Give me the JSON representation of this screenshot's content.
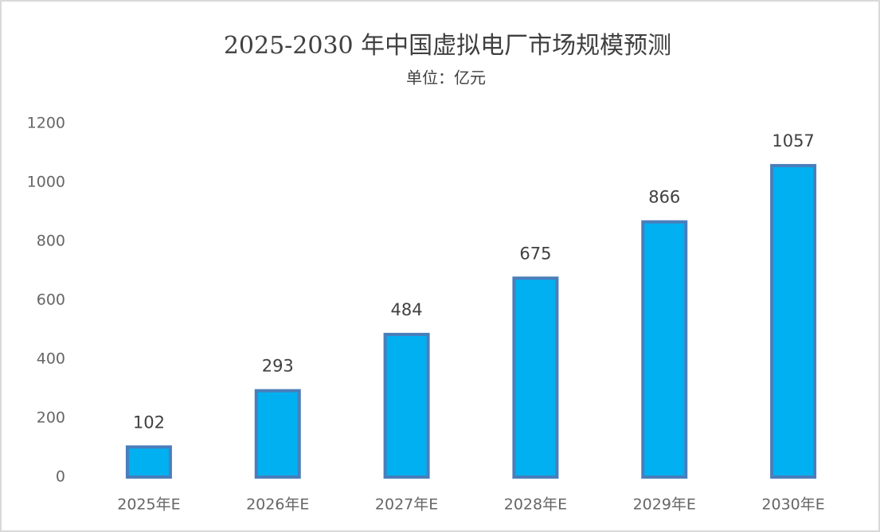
{
  "chart_data": {
    "type": "bar",
    "title": "2025-2030 年中国虚拟电厂市场规模预测",
    "subtitle": "单位：亿元",
    "categories": [
      "2025年E",
      "2026年E",
      "2027年E",
      "2028年E",
      "2029年E",
      "2030年E"
    ],
    "values": [
      102,
      293,
      484,
      675,
      866,
      1057
    ],
    "color": "#00b0f0",
    "edge_color": "#4a7ebb",
    "ylim": [
      0,
      1200
    ],
    "yticks": [
      0,
      200,
      400,
      600,
      800,
      1000,
      1200
    ],
    "grid": false
  }
}
